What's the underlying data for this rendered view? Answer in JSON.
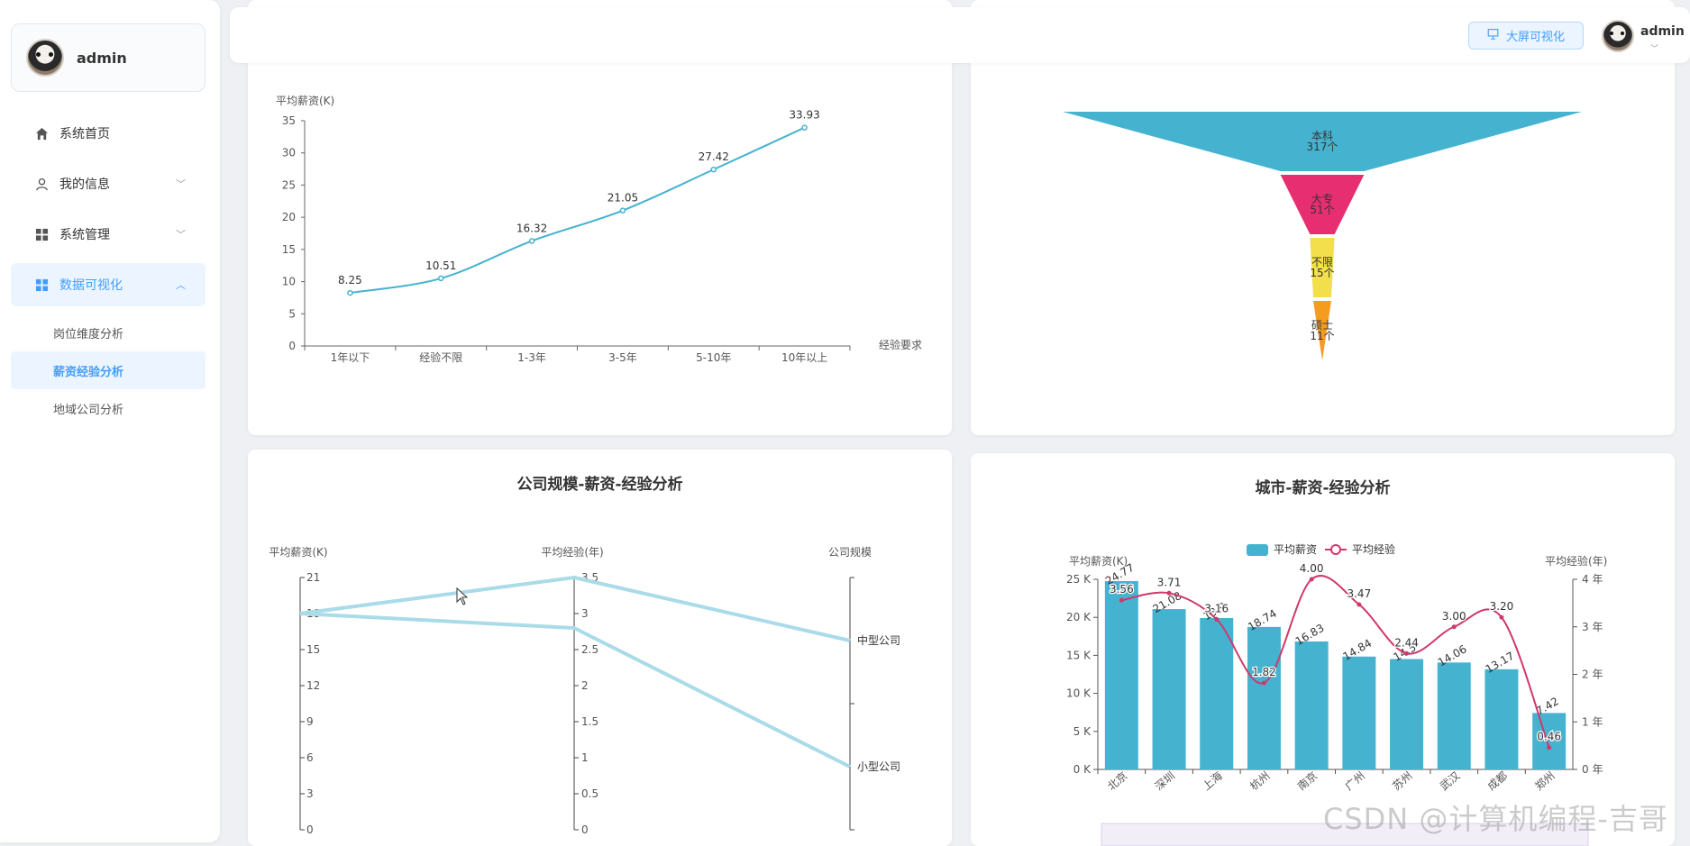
{
  "sidebar": {
    "username": "admin",
    "menu": [
      {
        "label": "系统首页"
      },
      {
        "label": "我的信息"
      },
      {
        "label": "系统管理"
      },
      {
        "label": "数据可视化"
      }
    ],
    "submenu": [
      {
        "label": "岗位维度分析"
      },
      {
        "label": "薪资经验分析"
      },
      {
        "label": "地域公司分析"
      }
    ]
  },
  "header": {
    "big_screen_label": "大屏可视化",
    "username": "admin"
  },
  "charts": {
    "exp_salary": {
      "ylabel": "平均薪资(K)",
      "xlabel": "经验要求"
    },
    "education": {},
    "company_scale": {
      "title": "公司规模-薪资-经验分析",
      "axis1": "平均薪资(K)",
      "axis2": "平均经验(年)",
      "axis3": "公司规模"
    },
    "city": {
      "title": "城市-薪资-经验分析",
      "legend_bar": "平均薪资",
      "legend_line": "平均经验",
      "ylabel_left": "平均薪资(K)",
      "ylabel_right": "平均经验(年)"
    }
  },
  "watermark": "CSDN @计算机编程-吉哥",
  "colors": {
    "accent": "#409eff",
    "chart_blue": "#45b3d0",
    "funnel_pink": "#e62e70",
    "funnel_yellow": "#f2df4b",
    "funnel_orange": "#f39c1f",
    "line_crimson": "#d0386b",
    "parallel": "#a9dbe8"
  },
  "chart_data": [
    {
      "type": "line",
      "categories": [
        "1年以下",
        "经验不限",
        "1-3年",
        "3-5年",
        "5-10年",
        "10年以上"
      ],
      "values": [
        8.25,
        10.51,
        16.32,
        21.05,
        27.42,
        33.93
      ],
      "data_labels": [
        "8.25",
        "10.51",
        "16.32",
        "21.05",
        "27.42",
        "33.93"
      ],
      "ylabel": "平均薪资(K)",
      "xlabel": "经验要求",
      "ylim": [
        0,
        35
      ],
      "yticks": [
        "0",
        "5",
        "10",
        "15",
        "20",
        "25",
        "30",
        "35"
      ]
    },
    {
      "type": "funnel",
      "categories": [
        "本科",
        "大专",
        "不限",
        "硕士"
      ],
      "values": [
        317,
        51,
        15,
        11
      ],
      "value_labels": [
        "317个",
        "51个",
        "15个",
        "11个"
      ]
    },
    {
      "type": "parallel",
      "title": "公司规模-薪资-经验分析",
      "axes": [
        "平均薪资(K)",
        "平均经验(年)",
        "公司规模"
      ],
      "axis1_ticks": [
        "0",
        "3",
        "6",
        "9",
        "12",
        "15",
        "18",
        "21"
      ],
      "axis2_ticks": [
        "0",
        "0.5",
        "1",
        "1.5",
        "2",
        "2.5",
        "3",
        "3.5"
      ],
      "axis3_categories": [
        "小型公司",
        "中型公司"
      ],
      "series": [
        {
          "salary": 18,
          "experience": 3.5,
          "scale": "中型公司"
        },
        {
          "salary": 18,
          "experience": 2.8,
          "scale": "小型公司"
        }
      ]
    },
    {
      "type": "bar",
      "title": "城市-薪资-经验分析",
      "categories": [
        "北京",
        "深圳",
        "上海",
        "杭州",
        "南京",
        "广州",
        "苏州",
        "武汉",
        "成都",
        "郑州"
      ],
      "series": [
        {
          "name": "平均薪资",
          "type": "bar",
          "values": [
            24.77,
            21.08,
            19.91,
            18.74,
            16.83,
            14.84,
            14.52,
            14.06,
            13.17,
            7.42
          ],
          "labels": [
            "24.77",
            "21.08",
            "19.9",
            "18.74",
            "16.83",
            "14.84",
            "14.5",
            "14.06",
            "13.17",
            "7.42"
          ]
        },
        {
          "name": "平均经验",
          "type": "line",
          "values": [
            3.56,
            3.71,
            3.16,
            1.82,
            4.0,
            3.47,
            2.44,
            3.0,
            3.2,
            0.46
          ],
          "labels": [
            "3.56",
            "3.71",
            "3.16",
            "1.82",
            "4.00",
            "3.47",
            "2.44",
            "3.00",
            "3.20",
            "0.46"
          ]
        }
      ],
      "ylabel_left": "平均薪资(K)",
      "ylabel_right": "平均经验(年)",
      "yticks_left": [
        "0 K",
        "5 K",
        "10 K",
        "15 K",
        "20 K",
        "25 K"
      ],
      "yticks_right": [
        "0 年",
        "1 年",
        "2 年",
        "3 年",
        "4 年"
      ],
      "ylim_left": [
        0,
        25
      ],
      "ylim_right": [
        0,
        4
      ]
    }
  ]
}
